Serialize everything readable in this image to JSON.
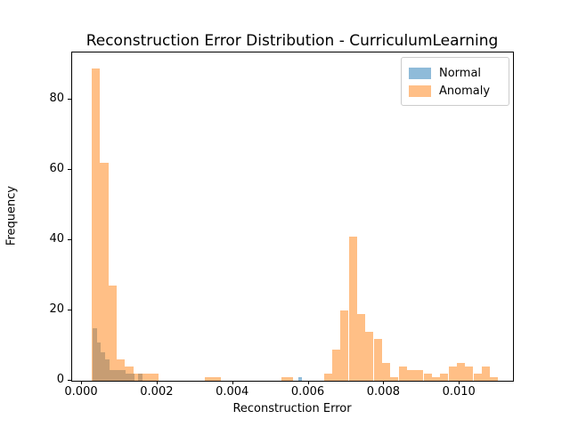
{
  "title": "Reconstruction Error Distribution - CurriculumLearning",
  "axes": {
    "xlabel": "Reconstruction Error",
    "ylabel": "Frequency",
    "x_tick_labels": [
      "0.000",
      "0.002",
      "0.004",
      "0.006",
      "0.008",
      "0.010"
    ],
    "x_tick_values": [
      0.0,
      0.002,
      0.004,
      0.006,
      0.008,
      0.01
    ],
    "y_tick_labels": [
      "0",
      "20",
      "40",
      "60",
      "80"
    ],
    "y_tick_values": [
      0,
      20,
      40,
      60,
      80
    ]
  },
  "legend": {
    "items": [
      {
        "label": "Normal",
        "swatch": "#8fbbd9"
      },
      {
        "label": "Anomaly",
        "swatch": "#ffbf87"
      }
    ]
  },
  "chart_data": {
    "type": "bar",
    "variant": "overlaid-histogram",
    "title": "Reconstruction Error Distribution - CurriculumLearning",
    "xlabel": "Reconstruction Error",
    "ylabel": "Frequency",
    "xlim": [
      -0.00026,
      0.01141
    ],
    "ylim": [
      0,
      93.45
    ],
    "grid": false,
    "legend_position": "upper right",
    "series": [
      {
        "name": "Normal",
        "color": "#1f77b4",
        "fill_rgba": "rgba(31,119,180,0.5)",
        "bars_x0_x1_count": [
          [
            0.00028,
            0.00039,
            15
          ],
          [
            0.00039,
            0.0005,
            11
          ],
          [
            0.0005,
            0.00061,
            8
          ],
          [
            0.00061,
            0.00072,
            6
          ],
          [
            0.00072,
            0.00083,
            3
          ],
          [
            0.00083,
            0.00094,
            3
          ],
          [
            0.00094,
            0.00105,
            3
          ],
          [
            0.00105,
            0.00116,
            3
          ],
          [
            0.00116,
            0.00127,
            2
          ],
          [
            0.00127,
            0.00138,
            2
          ],
          [
            0.00149,
            0.0016,
            2
          ],
          [
            0.00572,
            0.00583,
            1
          ]
        ]
      },
      {
        "name": "Anomaly",
        "color": "#ff7f0e",
        "fill_rgba": "rgba(255,127,14,0.5)",
        "bars_x0_x1_count": [
          [
            0.00026,
            0.00048,
            89
          ],
          [
            0.00048,
            0.0007,
            62
          ],
          [
            0.0007,
            0.00092,
            27
          ],
          [
            0.00092,
            0.00114,
            6
          ],
          [
            0.00114,
            0.00136,
            4
          ],
          [
            0.00136,
            0.00158,
            2
          ],
          [
            0.00158,
            0.0018,
            2
          ],
          [
            0.0018,
            0.00202,
            2
          ],
          [
            0.00325,
            0.00346,
            1
          ],
          [
            0.00346,
            0.00367,
            1
          ],
          [
            0.00529,
            0.00558,
            1
          ],
          [
            0.0064,
            0.00662,
            2
          ],
          [
            0.00662,
            0.00684,
            9
          ],
          [
            0.00684,
            0.00706,
            20
          ],
          [
            0.00706,
            0.00728,
            41
          ],
          [
            0.00728,
            0.0075,
            19
          ],
          [
            0.0075,
            0.00772,
            14
          ],
          [
            0.00772,
            0.00794,
            12
          ],
          [
            0.00794,
            0.00816,
            5
          ],
          [
            0.00816,
            0.00838,
            1
          ],
          [
            0.00838,
            0.0086,
            4
          ],
          [
            0.0086,
            0.00882,
            3
          ],
          [
            0.00882,
            0.00904,
            3
          ],
          [
            0.00904,
            0.00926,
            2
          ],
          [
            0.00926,
            0.00948,
            1
          ],
          [
            0.00948,
            0.0097,
            2
          ],
          [
            0.0097,
            0.00992,
            4
          ],
          [
            0.00992,
            0.01014,
            5
          ],
          [
            0.01014,
            0.01036,
            4
          ],
          [
            0.01036,
            0.01058,
            2
          ],
          [
            0.01058,
            0.0108,
            4
          ],
          [
            0.0108,
            0.01102,
            1
          ]
        ]
      }
    ]
  }
}
